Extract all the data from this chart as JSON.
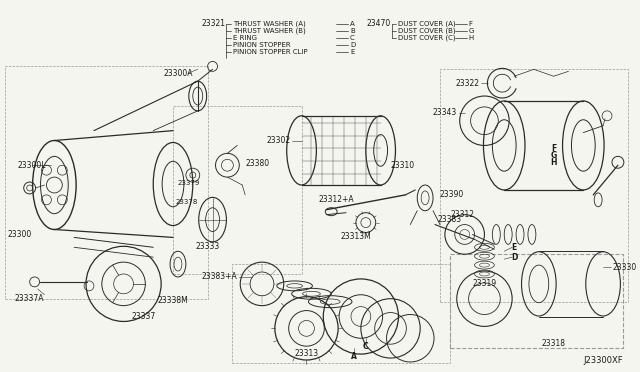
{
  "background_color": "#f5f5f0",
  "diagram_code": "J23300XF",
  "line_color": "#2a2a2a",
  "text_color": "#1a1a1a",
  "legend_left_pn": "23321",
  "legend_left_items": [
    [
      "THRUST WASHER (A)",
      "A"
    ],
    [
      "THRUST WASHER (B)",
      "B"
    ],
    [
      "E RING",
      "C"
    ],
    [
      "PINION STOPPER",
      "D"
    ],
    [
      "PINION STOPPER CLIP",
      "E"
    ]
  ],
  "legend_right_pn": "23470",
  "legend_right_items": [
    [
      "DUST COVER (A)",
      "F"
    ],
    [
      "DUST COVER (B)",
      "G"
    ],
    [
      "DUST COVER (C)",
      "H"
    ]
  ]
}
